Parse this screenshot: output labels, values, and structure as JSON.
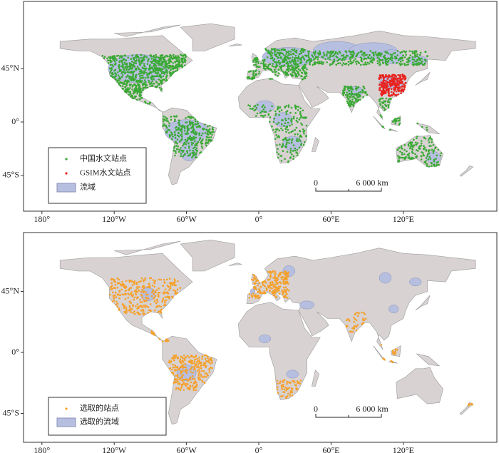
{
  "panels": [
    {
      "x_labels": [
        "180°",
        "120°W",
        "60°W",
        "0°",
        "60°E",
        "120°E"
      ],
      "y_labels": [
        "45°N",
        "0°",
        "45°S"
      ],
      "legend": [
        "中国水文站点",
        "GSIM水文站点",
        "流域"
      ],
      "scale_bar": {
        "start": "0",
        "end": "6 000 km"
      }
    },
    {
      "x_labels": [
        "180°",
        "120°W",
        "60°W",
        "0°",
        "60°E",
        "120°E"
      ],
      "y_labels": [
        "45°N",
        "0°",
        "45°S"
      ],
      "legend": [
        "选取的站点",
        "选取的流域"
      ],
      "scale_bar": {
        "start": "0",
        "end": "6 000 km"
      }
    }
  ]
}
